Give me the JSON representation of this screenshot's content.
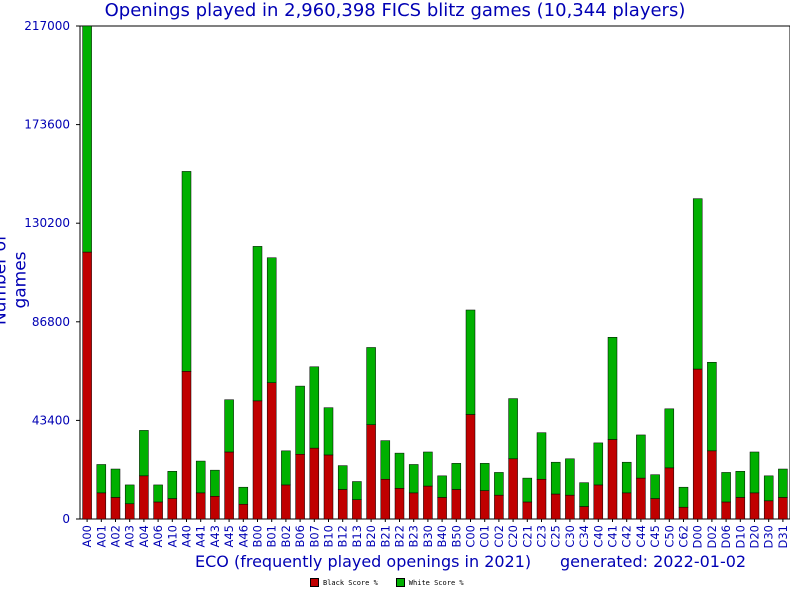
{
  "chart_data": {
    "type": "bar",
    "stacked": true,
    "title": "Openings played in 2,960,398 FICS blitz games (10,344 players)",
    "xlabel": "ECO (frequently played openings in 2021)",
    "ylabel": "Number of games",
    "footer": "generated: 2022-01-02",
    "ylim": [
      0,
      217000
    ],
    "yticks": [
      "0",
      "43400",
      "86800",
      "130200",
      "173600",
      "217000"
    ],
    "categories": [
      "A00",
      "A01",
      "A02",
      "A03",
      "A04",
      "A06",
      "A10",
      "A40",
      "A41",
      "A43",
      "A45",
      "A46",
      "B00",
      "B01",
      "B02",
      "B06",
      "B07",
      "B10",
      "B12",
      "B13",
      "B20",
      "B21",
      "B22",
      "B23",
      "B30",
      "B40",
      "B50",
      "C00",
      "C01",
      "C02",
      "C20",
      "C21",
      "C23",
      "C25",
      "C30",
      "C34",
      "C40",
      "C41",
      "C42",
      "C44",
      "C45",
      "C50",
      "C62",
      "D00",
      "D02",
      "D06",
      "D10",
      "D20",
      "D30",
      "D31"
    ],
    "series": [
      {
        "name": "Black Score %",
        "color": "#c00000",
        "values": [
          117500,
          11500,
          9500,
          6700,
          19000,
          7500,
          9000,
          65000,
          11500,
          10000,
          29500,
          6500,
          52000,
          60000,
          15000,
          28500,
          31200,
          28200,
          13000,
          8500,
          41500,
          17500,
          13500,
          11500,
          14500,
          9500,
          13000,
          46000,
          12500,
          10500,
          26500,
          7500,
          17500,
          11000,
          10500,
          5500,
          15000,
          35000,
          11500,
          18000,
          9000,
          22500,
          5200,
          66000,
          30000,
          7500,
          9500,
          11500,
          8000,
          9500
        ]
      },
      {
        "name": "White Score %",
        "color": "#00b000",
        "values": [
          99500,
          12500,
          12500,
          8300,
          20000,
          7500,
          12000,
          88000,
          14000,
          11500,
          23000,
          7500,
          68000,
          55000,
          15000,
          30000,
          35800,
          20800,
          10500,
          8000,
          34000,
          17000,
          15500,
          12500,
          15000,
          9500,
          11500,
          46000,
          12000,
          10000,
          26500,
          10500,
          20500,
          14000,
          16000,
          10500,
          18500,
          45000,
          13500,
          19000,
          10500,
          26000,
          8800,
          75000,
          39000,
          13000,
          11500,
          18000,
          11000,
          12500
        ]
      }
    ],
    "grid": false,
    "legend_position": "bottom"
  }
}
